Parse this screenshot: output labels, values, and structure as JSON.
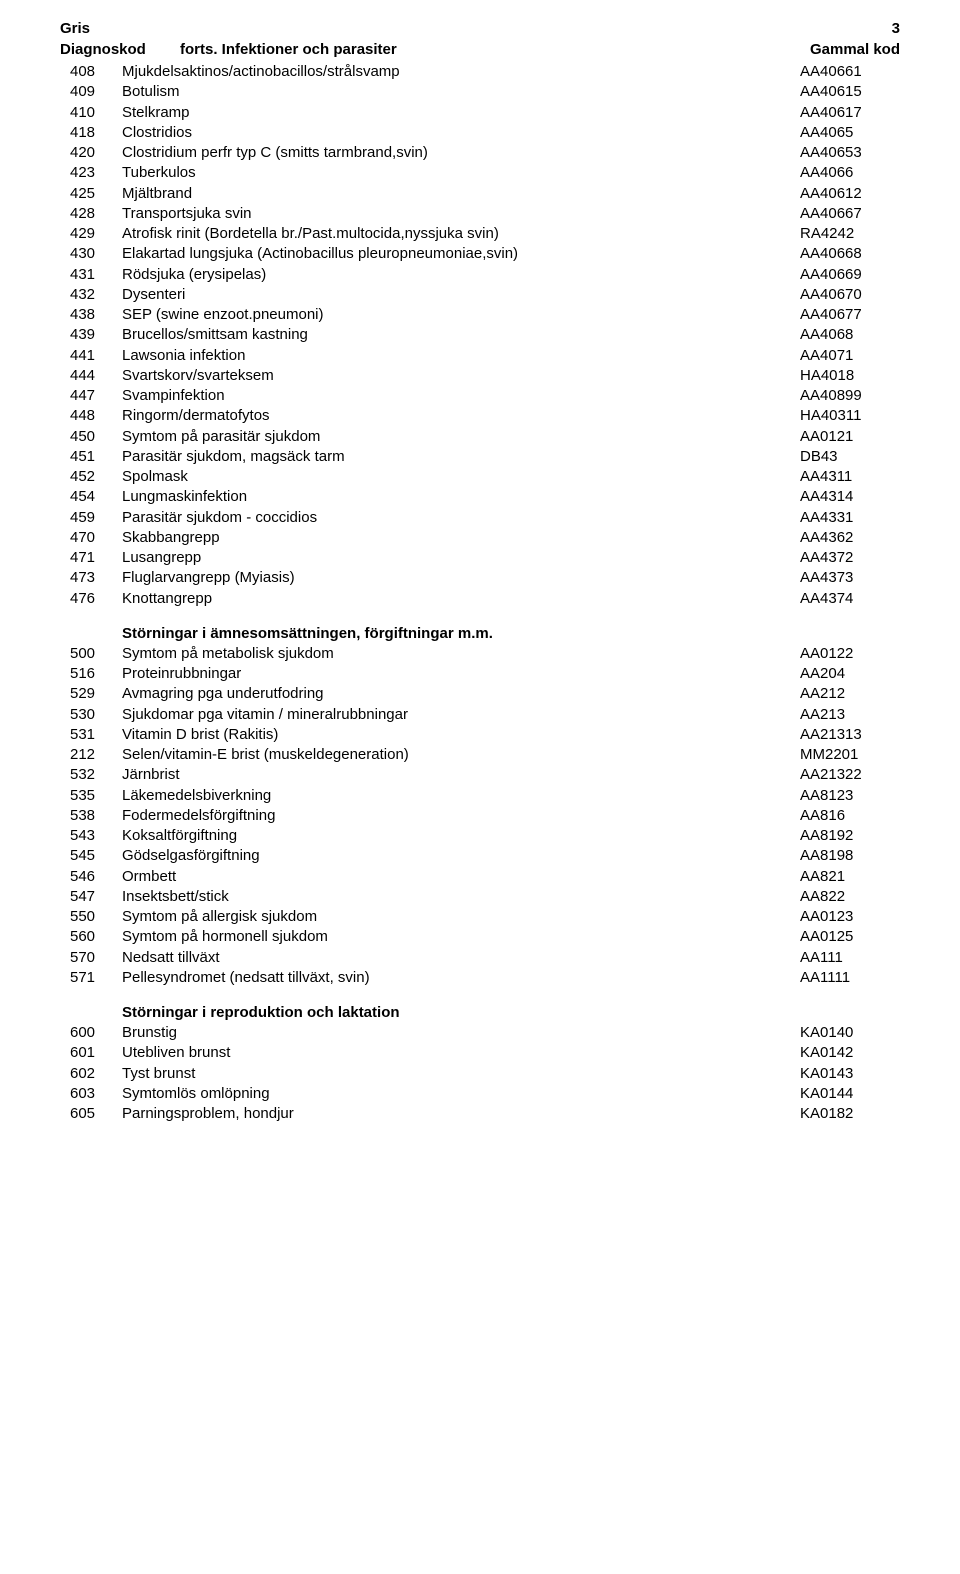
{
  "header": {
    "title": "Gris",
    "page_number": "3"
  },
  "subheader": {
    "col1": "Diagnoskod",
    "col2": "forts. Infektioner och parasiter",
    "col3": "Gammal kod"
  },
  "sections": [
    {
      "rows": [
        {
          "code": "408",
          "desc": "Mjukdelsaktinos/actinobacillos/strålsvamp",
          "oldcode": "AA40661"
        },
        {
          "code": "409",
          "desc": "Botulism",
          "oldcode": "AA40615"
        },
        {
          "code": "410",
          "desc": "Stelkramp",
          "oldcode": "AA40617"
        },
        {
          "code": "418",
          "desc": "Clostridios",
          "oldcode": "AA4065"
        },
        {
          "code": "420",
          "desc": "Clostridium perfr typ C (smitts tarmbrand,svin)",
          "oldcode": "AA40653"
        },
        {
          "code": "423",
          "desc": "Tuberkulos",
          "oldcode": "AA4066"
        },
        {
          "code": "425",
          "desc": "Mjältbrand",
          "oldcode": "AA40612"
        },
        {
          "code": "428",
          "desc": "Transportsjuka svin",
          "oldcode": "AA40667"
        },
        {
          "code": "429",
          "desc": "Atrofisk rinit (Bordetella br./Past.multocida,nyssjuka svin)",
          "oldcode": "RA4242"
        },
        {
          "code": "430",
          "desc": "Elakartad lungsjuka (Actinobacillus pleuropneumoniae,svin)",
          "oldcode": "AA40668"
        },
        {
          "code": "431",
          "desc": "Rödsjuka (erysipelas)",
          "oldcode": "AA40669"
        },
        {
          "code": "432",
          "desc": "Dysenteri",
          "oldcode": "AA40670"
        },
        {
          "code": "438",
          "desc": "SEP (swine enzoot.pneumoni)",
          "oldcode": "AA40677"
        },
        {
          "code": "439",
          "desc": "Brucellos/smittsam kastning",
          "oldcode": "AA4068"
        },
        {
          "code": "441",
          "desc": "Lawsonia infektion",
          "oldcode": "AA4071"
        },
        {
          "code": "444",
          "desc": "Svartskorv/svarteksem",
          "oldcode": "HA4018"
        },
        {
          "code": "447",
          "desc": "Svampinfektion",
          "oldcode": "AA40899"
        },
        {
          "code": "448",
          "desc": "Ringorm/dermatofytos",
          "oldcode": "HA40311"
        },
        {
          "code": "450",
          "desc": "Symtom på parasitär sjukdom",
          "oldcode": "AA0121"
        },
        {
          "code": "451",
          "desc": "Parasitär sjukdom, magsäck tarm",
          "oldcode": "DB43"
        },
        {
          "code": "452",
          "desc": "Spolmask",
          "oldcode": "AA4311"
        },
        {
          "code": "454",
          "desc": "Lungmaskinfektion",
          "oldcode": "AA4314"
        },
        {
          "code": "459",
          "desc": "Parasitär sjukdom - coccidios",
          "oldcode": "AA4331"
        },
        {
          "code": "470",
          "desc": "Skabbangrepp",
          "oldcode": "AA4362"
        },
        {
          "code": "471",
          "desc": "Lusangrepp",
          "oldcode": "AA4372"
        },
        {
          "code": "473",
          "desc": "Fluglarvangrepp (Myiasis)",
          "oldcode": "AA4373"
        },
        {
          "code": "476",
          "desc": "Knottangrepp",
          "oldcode": "AA4374"
        }
      ]
    },
    {
      "heading": "Störningar i ämnesomsättningen, förgiftningar m.m.",
      "rows": [
        {
          "code": "500",
          "desc": "Symtom på metabolisk sjukdom",
          "oldcode": "AA0122"
        },
        {
          "code": "516",
          "desc": "Proteinrubbningar",
          "oldcode": "AA204"
        },
        {
          "code": "529",
          "desc": "Avmagring pga underutfodring",
          "oldcode": "AA212"
        },
        {
          "code": "530",
          "desc": "Sjukdomar pga vitamin / mineralrubbningar",
          "oldcode": "AA213"
        },
        {
          "code": "531",
          "desc": "Vitamin D brist (Rakitis)",
          "oldcode": "AA21313"
        },
        {
          "code": "212",
          "desc": "Selen/vitamin-E brist (muskeldegeneration)",
          "oldcode": "MM2201"
        },
        {
          "code": "532",
          "desc": "Järnbrist",
          "oldcode": "AA21322"
        },
        {
          "code": "535",
          "desc": "Läkemedelsbiverkning",
          "oldcode": "AA8123"
        },
        {
          "code": "538",
          "desc": "Fodermedelsförgiftning",
          "oldcode": "AA816"
        },
        {
          "code": "543",
          "desc": "Koksaltförgiftning",
          "oldcode": "AA8192"
        },
        {
          "code": "545",
          "desc": "Gödselgasförgiftning",
          "oldcode": "AA8198"
        },
        {
          "code": "546",
          "desc": "Ormbett",
          "oldcode": "AA821"
        },
        {
          "code": "547",
          "desc": "Insektsbett/stick",
          "oldcode": "AA822"
        },
        {
          "code": "550",
          "desc": "Symtom på allergisk sjukdom",
          "oldcode": "AA0123"
        },
        {
          "code": "560",
          "desc": "Symtom på hormonell sjukdom",
          "oldcode": "AA0125"
        },
        {
          "code": "570",
          "desc": "Nedsatt tillväxt",
          "oldcode": "AA111"
        },
        {
          "code": "571",
          "desc": "Pellesyndromet (nedsatt tillväxt, svin)",
          "oldcode": "AA1111"
        }
      ]
    },
    {
      "heading": "Störningar i reproduktion och laktation",
      "rows": [
        {
          "code": "600",
          "desc": "Brunstig",
          "oldcode": "KA0140"
        },
        {
          "code": "601",
          "desc": "Utebliven brunst",
          "oldcode": "KA0142"
        },
        {
          "code": "602",
          "desc": "Tyst brunst",
          "oldcode": "KA0143"
        },
        {
          "code": "603",
          "desc": "Symtomlös omlöpning",
          "oldcode": "KA0144"
        },
        {
          "code": "605",
          "desc": "Parningsproblem, hondjur",
          "oldcode": "KA0182"
        }
      ]
    }
  ]
}
